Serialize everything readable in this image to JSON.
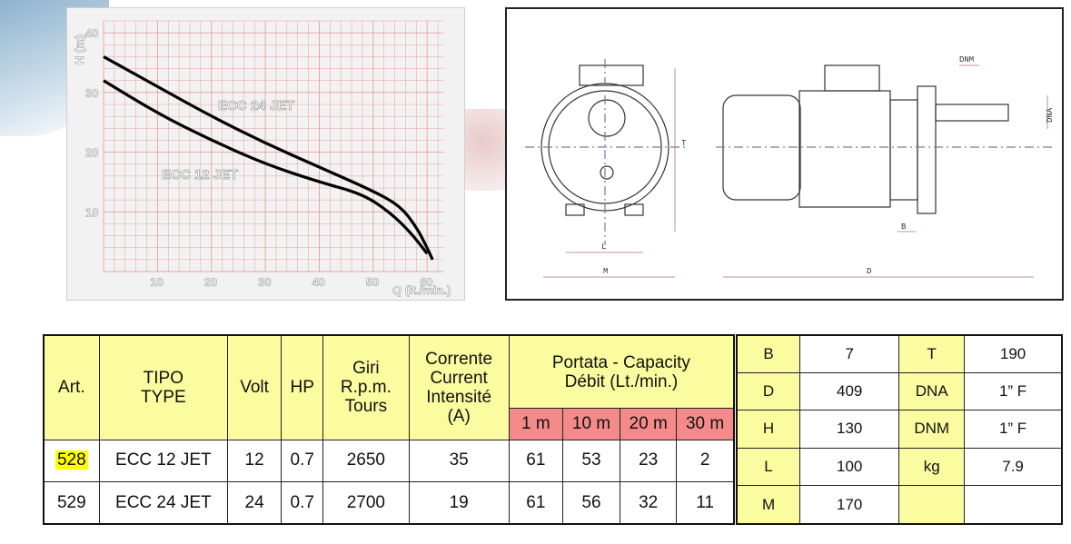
{
  "chart": {
    "y_axis_label": "H (m)",
    "x_axis_label": "Q (lt./min.)",
    "y_ticks": [
      "10",
      "20",
      "30",
      "40"
    ],
    "x_ticks": [
      "10",
      "20",
      "30",
      "40",
      "50",
      "60"
    ],
    "curve_labels": [
      "ECC 24 JET",
      "ECC 12 JET"
    ]
  },
  "chart_data": {
    "type": "line",
    "xlabel": "Q (lt./min.)",
    "ylabel": "H (m)",
    "xlim": [
      0,
      63
    ],
    "ylim": [
      0,
      42
    ],
    "grid": true,
    "series": [
      {
        "name": "ECC 24 JET",
        "x": [
          0,
          10,
          20,
          30,
          40,
          50,
          55,
          58,
          60,
          61
        ],
        "y": [
          36,
          31,
          26,
          21.5,
          17.5,
          13.5,
          11,
          7.5,
          4,
          2
        ]
      },
      {
        "name": "ECC 12 JET",
        "x": [
          0,
          10,
          20,
          30,
          40,
          48,
          53,
          57,
          60
        ],
        "y": [
          32,
          26.5,
          22,
          18,
          15,
          13,
          10,
          6.5,
          3
        ]
      }
    ]
  },
  "drawing": {
    "labels": [
      "T",
      "L",
      "M",
      "B",
      "D",
      "DNM",
      "DNA"
    ]
  },
  "spec_table": {
    "headers": {
      "art": "Art.",
      "tipo": [
        "TIPO",
        "TYPE"
      ],
      "volt": "Volt",
      "hp": "HP",
      "giri": [
        "Giri",
        "R.p.m.",
        "Tours"
      ],
      "corrente": [
        "Corrente",
        "Current",
        "Intensité",
        "(A)"
      ],
      "portata": [
        "Portata - Capacity",
        "Débit (Lt./min.)"
      ],
      "heights": [
        "1 m",
        "10 m",
        "20 m",
        "30 m"
      ]
    },
    "rows": [
      {
        "art": "528",
        "tipo": "ECC 12 JET",
        "volt": "12",
        "hp": "0.7",
        "giri": "2650",
        "corrente": "35",
        "capacity": [
          "61",
          "53",
          "23",
          "2"
        ]
      },
      {
        "art": "529",
        "tipo": "ECC 24 JET",
        "volt": "24",
        "hp": "0.7",
        "giri": "2700",
        "corrente": "19",
        "capacity": [
          "61",
          "56",
          "32",
          "11"
        ]
      }
    ]
  },
  "dim_table": {
    "rows": [
      [
        "B",
        "7",
        "T",
        "190"
      ],
      [
        "D",
        "409",
        "DNA",
        "1” F"
      ],
      [
        "H",
        "130",
        "DNM",
        "1” F"
      ],
      [
        "L",
        "100",
        "kg",
        "7.9"
      ],
      [
        "M",
        "170",
        "",
        ""
      ]
    ]
  },
  "colors": {
    "header_yellow": "#fbfba0",
    "header_red": "#f58a8a",
    "highlight": "#ffff00",
    "grid_red": "#e8a0a0"
  }
}
